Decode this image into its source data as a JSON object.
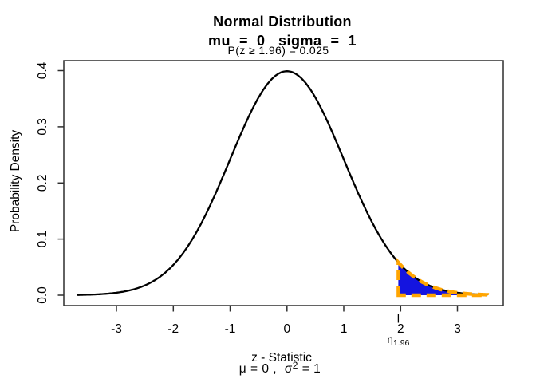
{
  "chart_data": {
    "type": "line",
    "title": "Normal Distribution",
    "subtitle": "mu  =  0   sigma  =  1",
    "annotation": "P(z ≥ 1.96) = 0.025",
    "xlabel": "z - Statistic",
    "xlabel_sub_full": "μ = 0 ,  σ² = 1",
    "xlabel_sub_parts": {
      "prefix": "μ = 0 ,  σ",
      "sup": "2",
      "suffix": " = 1"
    },
    "ylabel": "Probability Density",
    "distribution": {
      "name": "normal",
      "mu": 0,
      "sigma": 1,
      "peak_density": 0.3989
    },
    "curve_z_range": [
      -3.68,
      3.52
    ],
    "x_ticks": [
      -3,
      -2,
      -1,
      0,
      1,
      2,
      3
    ],
    "y_ticks": [
      "0.0",
      "0.1",
      "0.2",
      "0.3",
      "0.4"
    ],
    "ylim": [
      0,
      0.4
    ],
    "grid": false,
    "legend": "none",
    "curve_color": "#000000",
    "axis_color": "#2f2f2f",
    "shaded_region": {
      "from_z": 1.96,
      "to_z": 3.52,
      "probability": 0.025,
      "fill": "#1414e0",
      "border": "#ffa500",
      "border_style": "dashed"
    },
    "critical_value_label": {
      "symbol": "η",
      "subscript": "1.96",
      "at_z": 1.96
    }
  }
}
